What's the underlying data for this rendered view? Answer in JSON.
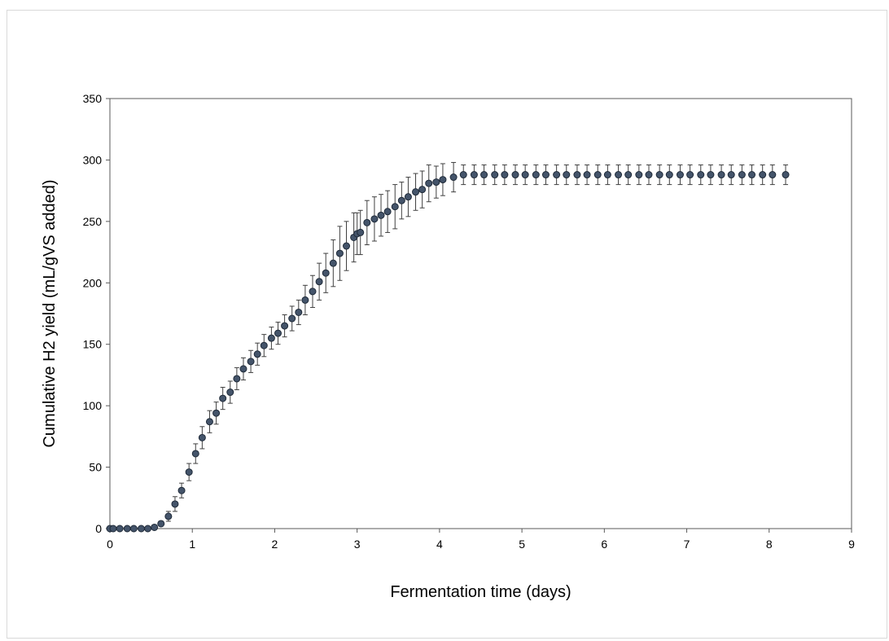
{
  "chart_data": {
    "type": "scatter",
    "title": "",
    "xlabel": "Fermentation time (days)",
    "ylabel": "Cumulative H2 yield (mL/gVS added)",
    "xlim": [
      0,
      9
    ],
    "ylim": [
      0,
      350
    ],
    "xticks": [
      0,
      1,
      2,
      3,
      4,
      5,
      6,
      7,
      8,
      9
    ],
    "yticks": [
      0,
      50,
      100,
      150,
      200,
      250,
      300,
      350
    ],
    "xtick_labels": [
      "0",
      "1",
      "2",
      "3",
      "4",
      "5",
      "6",
      "7",
      "8",
      "9"
    ],
    "ytick_labels": [
      "0",
      "50",
      "100",
      "150",
      "200",
      "250",
      "300",
      "350"
    ],
    "grid": false,
    "legend": "none",
    "marker_color": "#44546a",
    "errorbar_color": "#404040",
    "series": [
      {
        "x": [
          0.0,
          0.04,
          0.12,
          0.21,
          0.29,
          0.38,
          0.46,
          0.54,
          0.62,
          0.71,
          0.79,
          0.87,
          0.96,
          1.04,
          1.12,
          1.21,
          1.29,
          1.37,
          1.46,
          1.54,
          1.62,
          1.71,
          1.79,
          1.87,
          1.96,
          2.04,
          2.12,
          2.21,
          2.29,
          2.37,
          2.46,
          2.54,
          2.62,
          2.71,
          2.79,
          2.87,
          2.96,
          3.0,
          3.04,
          3.12,
          3.21,
          3.29,
          3.37,
          3.46,
          3.54,
          3.62,
          3.71,
          3.79,
          3.87,
          3.96,
          4.04,
          4.17,
          4.29,
          4.42,
          4.54,
          4.67,
          4.79,
          4.92,
          5.04,
          5.17,
          5.29,
          5.42,
          5.54,
          5.67,
          5.79,
          5.92,
          6.04,
          6.17,
          6.29,
          6.42,
          6.54,
          6.67,
          6.79,
          6.92,
          7.04,
          7.17,
          7.29,
          7.42,
          7.54,
          7.67,
          7.79,
          7.92,
          8.04,
          8.2
        ],
        "y": [
          0,
          0,
          0,
          0,
          0,
          0,
          0,
          1,
          4,
          10,
          20,
          31,
          46,
          61,
          74,
          87,
          94,
          106,
          111,
          122,
          130,
          136,
          142,
          149,
          155,
          159,
          165,
          171,
          176,
          186,
          193,
          201,
          208,
          216,
          224,
          230,
          237,
          240,
          241,
          249,
          252,
          255,
          258,
          262,
          267,
          270,
          274,
          276,
          281,
          282,
          284,
          286,
          288,
          288,
          288,
          288,
          288,
          288,
          288,
          288,
          288,
          288,
          288,
          288,
          288,
          288,
          288,
          288,
          288,
          288,
          288,
          288,
          288,
          288,
          288,
          288,
          288,
          288,
          288,
          288,
          288,
          288,
          288,
          288
        ],
        "error": [
          0,
          0,
          0,
          0,
          0,
          0,
          0,
          1,
          2,
          4,
          6,
          6,
          7,
          8,
          9,
          9,
          9,
          9,
          9,
          9,
          9,
          9,
          9,
          9,
          9,
          9,
          9,
          10,
          10,
          12,
          13,
          15,
          16,
          19,
          22,
          20,
          20,
          17,
          18,
          18,
          18,
          17,
          17,
          18,
          15,
          16,
          15,
          15,
          15,
          13,
          13,
          12,
          8,
          8,
          8,
          8,
          8,
          8,
          8,
          8,
          8,
          8,
          8,
          8,
          8,
          8,
          8,
          8,
          8,
          8,
          8,
          8,
          8,
          8,
          8,
          8,
          8,
          8,
          8,
          8,
          8,
          8,
          8,
          8
        ]
      }
    ]
  }
}
